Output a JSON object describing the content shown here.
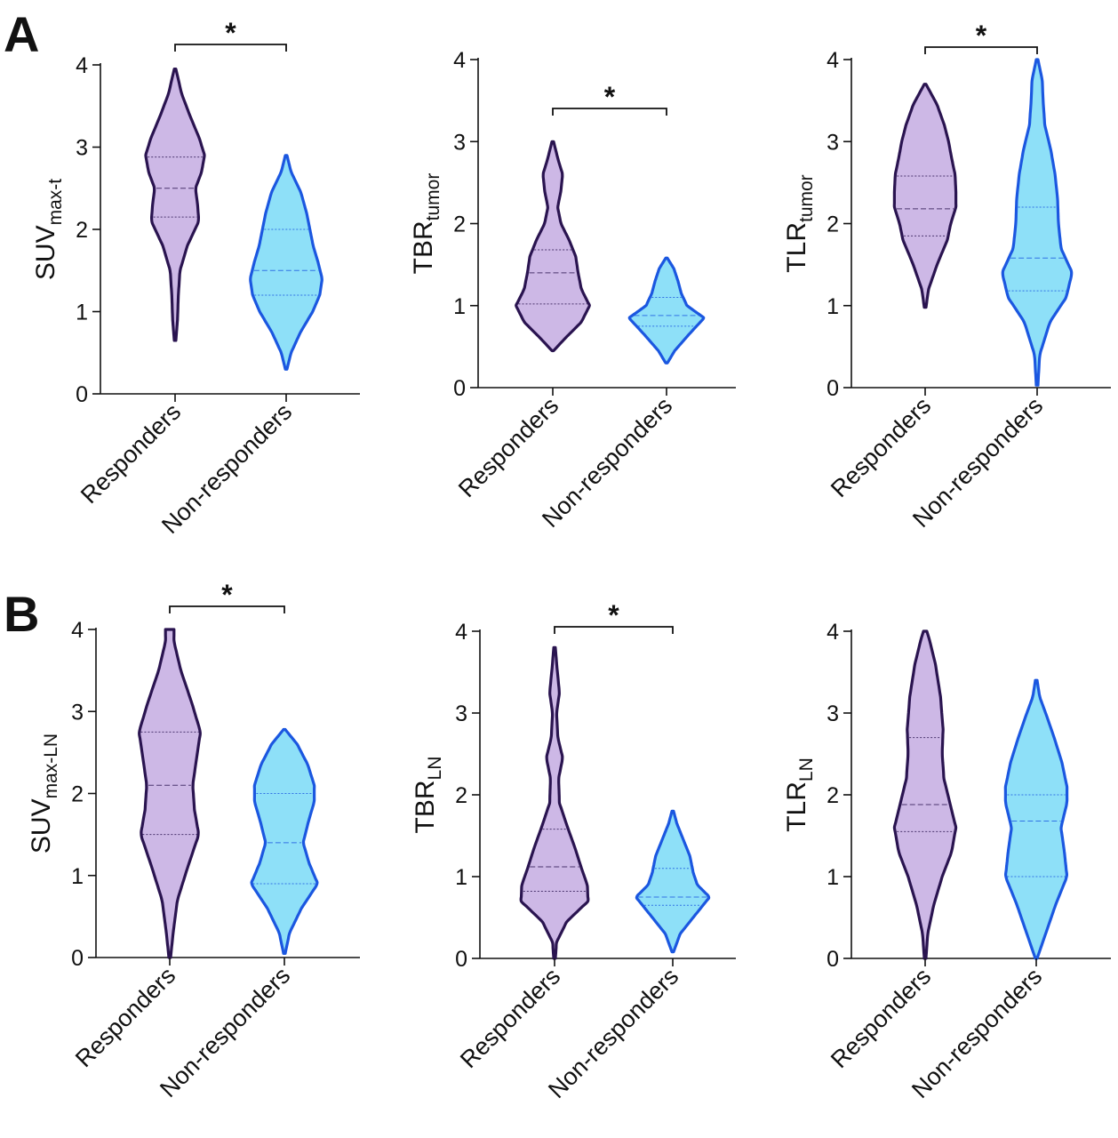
{
  "panels": [
    {
      "letter": "A"
    },
    {
      "letter": "B"
    }
  ],
  "colors": {
    "responders_fill": "#cdb8e6",
    "responders_stroke": "#2a1450",
    "nonresponders_fill": "#8ee0f8",
    "nonresponders_stroke": "#1b57e0",
    "axis": "#111111"
  },
  "chart_data": [
    {
      "type": "violin",
      "panel": "A",
      "ylabel_main": "SUV",
      "ylabel_sub": "max-t",
      "categories": [
        "Responders",
        "Non-responders"
      ],
      "ylim": [
        0,
        4
      ],
      "yticks": [
        "0",
        "1",
        "2",
        "3",
        "4"
      ],
      "significance": "*",
      "series": [
        {
          "name": "Responders",
          "range": [
            0.65,
            3.95
          ],
          "quartiles": [
            2.15,
            2.5,
            2.88
          ],
          "density": [
            [
              0.65,
              0.02
            ],
            [
              0.9,
              0.06
            ],
            [
              1.2,
              0.08
            ],
            [
              1.5,
              0.12
            ],
            [
              1.8,
              0.3
            ],
            [
              2.1,
              0.58
            ],
            [
              2.3,
              0.55
            ],
            [
              2.5,
              0.5
            ],
            [
              2.7,
              0.65
            ],
            [
              2.9,
              0.72
            ],
            [
              3.1,
              0.6
            ],
            [
              3.4,
              0.35
            ],
            [
              3.65,
              0.16
            ],
            [
              3.95,
              0.02
            ]
          ]
        },
        {
          "name": "Non-responders",
          "range": [
            0.3,
            2.9
          ],
          "quartiles": [
            1.2,
            1.5,
            2.0
          ],
          "density": [
            [
              0.3,
              0.02
            ],
            [
              0.5,
              0.12
            ],
            [
              0.75,
              0.35
            ],
            [
              1.0,
              0.65
            ],
            [
              1.2,
              0.82
            ],
            [
              1.4,
              0.88
            ],
            [
              1.6,
              0.78
            ],
            [
              1.8,
              0.66
            ],
            [
              2.0,
              0.58
            ],
            [
              2.2,
              0.5
            ],
            [
              2.45,
              0.36
            ],
            [
              2.7,
              0.12
            ],
            [
              2.9,
              0.02
            ]
          ]
        }
      ]
    },
    {
      "type": "violin",
      "panel": "A",
      "ylabel_main": "TBR",
      "ylabel_sub": "tumor",
      "categories": [
        "Responders",
        "Non-responders"
      ],
      "ylim": [
        0,
        4
      ],
      "yticks": [
        "0",
        "1",
        "2",
        "3",
        "4"
      ],
      "significance": "*",
      "series": [
        {
          "name": "Responders",
          "range": [
            0.45,
            3.0
          ],
          "quartiles": [
            1.02,
            1.4,
            1.68
          ],
          "density": [
            [
              0.45,
              0.02
            ],
            [
              0.6,
              0.3
            ],
            [
              0.8,
              0.7
            ],
            [
              1.0,
              0.9
            ],
            [
              1.2,
              0.7
            ],
            [
              1.4,
              0.62
            ],
            [
              1.6,
              0.56
            ],
            [
              1.8,
              0.4
            ],
            [
              2.0,
              0.2
            ],
            [
              2.2,
              0.12
            ],
            [
              2.4,
              0.2
            ],
            [
              2.6,
              0.24
            ],
            [
              2.8,
              0.12
            ],
            [
              3.0,
              0.02
            ]
          ]
        },
        {
          "name": "Non-responders",
          "range": [
            0.3,
            1.58
          ],
          "quartiles": [
            0.75,
            0.88,
            1.1
          ],
          "density": [
            [
              0.3,
              0.02
            ],
            [
              0.45,
              0.2
            ],
            [
              0.65,
              0.55
            ],
            [
              0.85,
              0.92
            ],
            [
              1.0,
              0.5
            ],
            [
              1.15,
              0.36
            ],
            [
              1.3,
              0.28
            ],
            [
              1.45,
              0.18
            ],
            [
              1.58,
              0.02
            ]
          ]
        }
      ]
    },
    {
      "type": "violin",
      "panel": "A",
      "ylabel_main": "TLR",
      "ylabel_sub": "tumor",
      "categories": [
        "Responders",
        "Non-responders"
      ],
      "ylim": [
        0,
        4
      ],
      "yticks": [
        "0",
        "1",
        "2",
        "3",
        "4"
      ],
      "significance": "*",
      "series": [
        {
          "name": "Responders",
          "range": [
            0.98,
            3.7
          ],
          "quartiles": [
            1.85,
            2.18,
            2.58
          ],
          "density": [
            [
              0.98,
              0.02
            ],
            [
              1.2,
              0.08
            ],
            [
              1.5,
              0.28
            ],
            [
              1.8,
              0.52
            ],
            [
              2.0,
              0.6
            ],
            [
              2.2,
              0.72
            ],
            [
              2.4,
              0.72
            ],
            [
              2.6,
              0.7
            ],
            [
              2.8,
              0.62
            ],
            [
              3.0,
              0.55
            ],
            [
              3.2,
              0.45
            ],
            [
              3.45,
              0.28
            ],
            [
              3.7,
              0.02
            ]
          ]
        },
        {
          "name": "Non-responders",
          "range": [
            0.03,
            4.0
          ],
          "quartiles": [
            1.18,
            1.58,
            2.2
          ],
          "density": [
            [
              0.03,
              0.02
            ],
            [
              0.4,
              0.06
            ],
            [
              0.8,
              0.3
            ],
            [
              1.1,
              0.68
            ],
            [
              1.4,
              0.82
            ],
            [
              1.7,
              0.56
            ],
            [
              2.0,
              0.5
            ],
            [
              2.3,
              0.48
            ],
            [
              2.6,
              0.42
            ],
            [
              2.9,
              0.32
            ],
            [
              3.2,
              0.18
            ],
            [
              3.5,
              0.14
            ],
            [
              3.75,
              0.12
            ],
            [
              4.0,
              0.02
            ]
          ]
        }
      ]
    },
    {
      "type": "violin",
      "panel": "B",
      "ylabel_main": "SUV",
      "ylabel_sub": "max-LN",
      "categories": [
        "Responders",
        "Non-responders"
      ],
      "ylim": [
        0,
        4
      ],
      "yticks": [
        "0",
        "1",
        "2",
        "3",
        "4"
      ],
      "significance": "*",
      "series": [
        {
          "name": "Responders",
          "range": [
            0.0,
            4.0
          ],
          "quartiles": [
            1.5,
            2.1,
            2.75
          ],
          "density": [
            [
              0.0,
              0.02
            ],
            [
              0.3,
              0.08
            ],
            [
              0.7,
              0.18
            ],
            [
              1.1,
              0.42
            ],
            [
              1.5,
              0.68
            ],
            [
              1.8,
              0.58
            ],
            [
              2.1,
              0.54
            ],
            [
              2.4,
              0.62
            ],
            [
              2.75,
              0.72
            ],
            [
              3.1,
              0.52
            ],
            [
              3.5,
              0.26
            ],
            [
              3.85,
              0.1
            ],
            [
              4.0,
              0.1
            ]
          ]
        },
        {
          "name": "Non-responders",
          "range": [
            0.05,
            2.78
          ],
          "quartiles": [
            0.9,
            1.4,
            2.0
          ],
          "density": [
            [
              0.05,
              0.02
            ],
            [
              0.3,
              0.12
            ],
            [
              0.6,
              0.4
            ],
            [
              0.9,
              0.78
            ],
            [
              1.15,
              0.58
            ],
            [
              1.4,
              0.44
            ],
            [
              1.65,
              0.56
            ],
            [
              1.9,
              0.7
            ],
            [
              2.1,
              0.7
            ],
            [
              2.35,
              0.55
            ],
            [
              2.6,
              0.3
            ],
            [
              2.78,
              0.02
            ]
          ]
        }
      ]
    },
    {
      "type": "violin",
      "panel": "B",
      "ylabel_main": "TBR",
      "ylabel_sub": "LN",
      "categories": [
        "Responders",
        "Non-responders"
      ],
      "ylim": [
        0,
        4
      ],
      "yticks": [
        "0",
        "1",
        "2",
        "3",
        "4"
      ],
      "significance": "*",
      "series": [
        {
          "name": "Responders",
          "range": [
            0.0,
            3.8
          ],
          "quartiles": [
            0.82,
            1.12,
            1.58
          ],
          "density": [
            [
              0.0,
              0.02
            ],
            [
              0.2,
              0.05
            ],
            [
              0.45,
              0.3
            ],
            [
              0.7,
              0.82
            ],
            [
              0.9,
              0.8
            ],
            [
              1.1,
              0.66
            ],
            [
              1.35,
              0.5
            ],
            [
              1.6,
              0.32
            ],
            [
              1.9,
              0.12
            ],
            [
              2.2,
              0.1
            ],
            [
              2.45,
              0.2
            ],
            [
              2.7,
              0.08
            ],
            [
              3.0,
              0.05
            ],
            [
              3.25,
              0.12
            ],
            [
              3.55,
              0.06
            ],
            [
              3.8,
              0.02
            ]
          ]
        },
        {
          "name": "Non-responders",
          "range": [
            0.08,
            1.8
          ],
          "quartiles": [
            0.65,
            0.75,
            1.1
          ],
          "density": [
            [
              0.08,
              0.02
            ],
            [
              0.3,
              0.18
            ],
            [
              0.55,
              0.58
            ],
            [
              0.75,
              0.9
            ],
            [
              0.9,
              0.6
            ],
            [
              1.05,
              0.5
            ],
            [
              1.25,
              0.42
            ],
            [
              1.45,
              0.26
            ],
            [
              1.65,
              0.1
            ],
            [
              1.8,
              0.02
            ]
          ]
        }
      ]
    },
    {
      "type": "violin",
      "panel": "B",
      "ylabel_main": "TLR",
      "ylabel_sub": "LN",
      "categories": [
        "Responders",
        "Non-responders"
      ],
      "ylim": [
        0,
        4
      ],
      "yticks": [
        "0",
        "1",
        "2",
        "3",
        "4"
      ],
      "significance": "",
      "series": [
        {
          "name": "Responders",
          "range": [
            0.0,
            4.0
          ],
          "quartiles": [
            1.55,
            1.88,
            2.7
          ],
          "density": [
            [
              0.0,
              0.02
            ],
            [
              0.3,
              0.06
            ],
            [
              0.65,
              0.2
            ],
            [
              1.0,
              0.4
            ],
            [
              1.3,
              0.62
            ],
            [
              1.6,
              0.72
            ],
            [
              1.9,
              0.58
            ],
            [
              2.2,
              0.44
            ],
            [
              2.5,
              0.4
            ],
            [
              2.8,
              0.42
            ],
            [
              3.2,
              0.36
            ],
            [
              3.6,
              0.24
            ],
            [
              3.9,
              0.1
            ],
            [
              4.0,
              0.04
            ]
          ]
        },
        {
          "name": "Non-responders",
          "range": [
            0.0,
            3.4
          ],
          "quartiles": [
            1.0,
            1.68,
            2.0
          ],
          "density": [
            [
              0.0,
              0.02
            ],
            [
              0.3,
              0.22
            ],
            [
              0.65,
              0.45
            ],
            [
              1.0,
              0.72
            ],
            [
              1.3,
              0.66
            ],
            [
              1.6,
              0.58
            ],
            [
              1.9,
              0.72
            ],
            [
              2.1,
              0.72
            ],
            [
              2.4,
              0.6
            ],
            [
              2.7,
              0.42
            ],
            [
              3.0,
              0.22
            ],
            [
              3.2,
              0.08
            ],
            [
              3.4,
              0.02
            ]
          ]
        }
      ]
    }
  ]
}
